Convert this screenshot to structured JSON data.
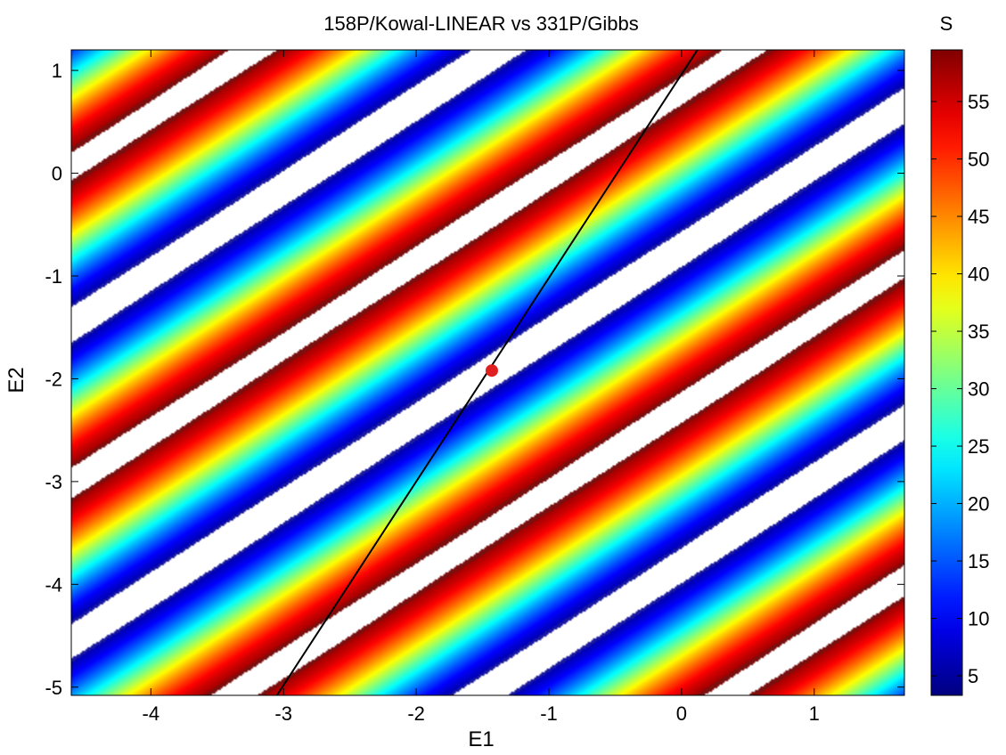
{
  "chart_data": {
    "type": "heatmap",
    "title": "158P/Kowal-LINEAR  vs 331P/Gibbs",
    "xlabel": "E1",
    "ylabel": "E2",
    "xlim": [
      -4.6,
      1.68
    ],
    "ylim": [
      -5.08,
      1.2
    ],
    "xticks": [
      -4,
      -3,
      -2,
      -1,
      0,
      1
    ],
    "yticks": [
      1,
      0,
      -1,
      -2,
      -3,
      -4,
      -5
    ],
    "colorbar": {
      "label": "S",
      "range": [
        3.3,
        59.5
      ],
      "ticks": [
        5,
        10,
        15,
        20,
        25,
        30,
        35,
        40,
        45,
        50,
        55
      ],
      "colormap": "jet"
    },
    "field": {
      "description_points": [
        {
          "e1": -1.4,
          "e2": -1.9,
          "s": 3.5
        },
        {
          "e1": -2.55,
          "e2": 0.0,
          "s": 3.5
        },
        {
          "e1": -2.2,
          "e2": -1.6,
          "s": 59
        },
        {
          "e1": -0.6,
          "e2": -2.2,
          "s": 59
        }
      ],
      "band_direction_slope": 0.83,
      "period_perpendicular": 2.37
    },
    "contours": [
      {
        "color": "#1a1aa0",
        "level": 5.5
      },
      {
        "color": "#7a1010",
        "level": 58.5
      }
    ],
    "line": {
      "color": "#000000",
      "points": [
        [
          -3.05,
          -5.08
        ],
        [
          0.12,
          1.2
        ]
      ]
    },
    "marker": {
      "color": "#e02020",
      "e1": -1.43,
      "e2": -1.92
    }
  }
}
